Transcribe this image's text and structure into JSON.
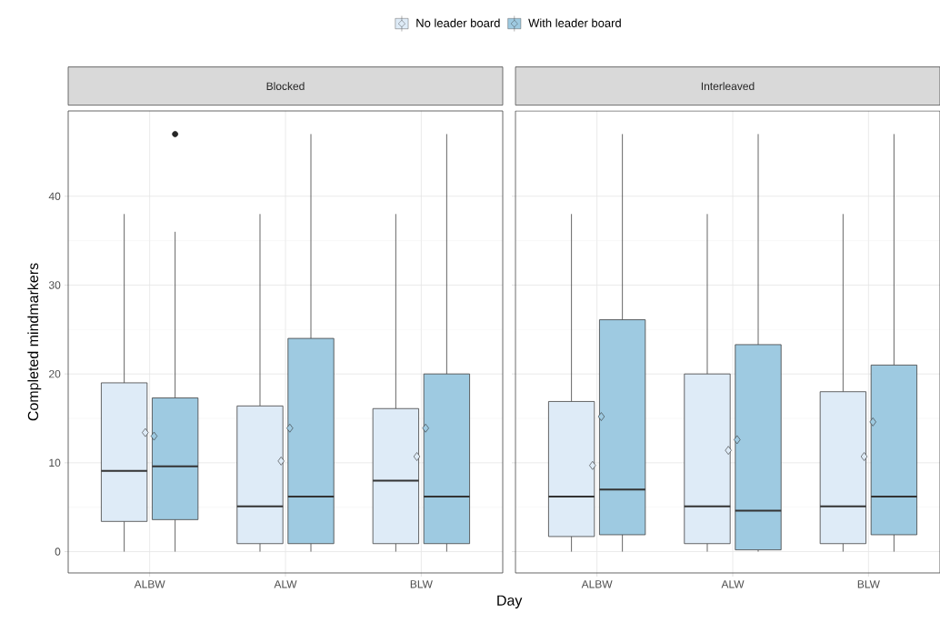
{
  "chart_data": [
    {
      "type": "box",
      "title": "Blocked",
      "xlabel": "Day",
      "ylabel": "Completed mindmarkers",
      "categories": [
        "ALBW",
        "ALW",
        "BLW"
      ],
      "series": [
        {
          "name": "No leader board",
          "color": "#deebf7",
          "boxes": [
            {
              "low": 0,
              "q1": 3.4,
              "median": 9.1,
              "q3": 19,
              "high": 38,
              "mean": 13.4
            },
            {
              "low": 0,
              "q1": 0.9,
              "median": 5.1,
              "q3": 16.4,
              "high": 38,
              "mean": 10.2
            },
            {
              "low": 0,
              "q1": 0.9,
              "median": 8,
              "q3": 16.1,
              "high": 38,
              "mean": 10.7
            }
          ]
        },
        {
          "name": "With leader board",
          "color": "#9ecae1",
          "boxes": [
            {
              "low": 0,
              "q1": 3.6,
              "median": 9.6,
              "q3": 17.3,
              "high": 36,
              "mean": 13,
              "outliers": [
                47
              ]
            },
            {
              "low": 0,
              "q1": 0.9,
              "median": 6.2,
              "q3": 24,
              "high": 47,
              "mean": 13.9
            },
            {
              "low": 0,
              "q1": 0.9,
              "median": 6.2,
              "q3": 20,
              "high": 47,
              "mean": 13.9
            }
          ]
        }
      ],
      "ylim": [
        -2.4,
        49.6
      ],
      "yticks": [
        0,
        10,
        20,
        30,
        40
      ],
      "grid": true,
      "legend": "top"
    },
    {
      "type": "box",
      "title": "Interleaved",
      "categories": [
        "ALBW",
        "ALW",
        "BLW"
      ],
      "series": [
        {
          "color": "#deebf7",
          "boxes": [
            {
              "low": 0,
              "q1": 1.7,
              "median": 6.2,
              "q3": 16.9,
              "high": 38,
              "mean": 9.7
            },
            {
              "low": 0,
              "q1": 0.9,
              "median": 5.1,
              "q3": 20,
              "high": 38,
              "mean": 11.4
            },
            {
              "low": 0,
              "q1": 0.9,
              "median": 5.1,
              "q3": 18,
              "high": 38,
              "mean": 10.7
            }
          ]
        },
        {
          "color": "#9ecae1",
          "boxes": [
            {
              "low": 0,
              "q1": 1.9,
              "median": 7,
              "q3": 26.1,
              "high": 47,
              "mean": 15.2
            },
            {
              "low": 0,
              "q1": 0.2,
              "median": 4.6,
              "q3": 23.3,
              "high": 47,
              "mean": 12.6
            },
            {
              "low": 0,
              "q1": 1.9,
              "median": 6.2,
              "q3": 21,
              "high": 47,
              "mean": 14.6
            }
          ]
        }
      ],
      "ylim": [
        -2.4,
        49.6
      ],
      "yticks": [
        0,
        10,
        20,
        30,
        40
      ],
      "grid": true,
      "tick_labels": "x"
    }
  ]
}
